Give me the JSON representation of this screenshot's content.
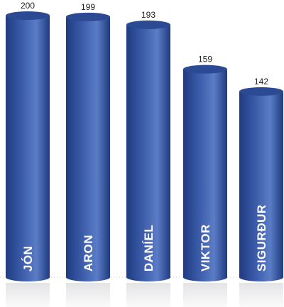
{
  "chart_data": {
    "type": "bar",
    "categories": [
      "JÓN",
      "ARON",
      "DANÍEL",
      "VIKTOR",
      "SIGURÐUR"
    ],
    "values": [
      200,
      199,
      193,
      159,
      142
    ],
    "ylim": [
      0,
      200
    ],
    "grid": false,
    "colors": {
      "bar_main": "#3a5aa8",
      "bar_light": "#5b7cc6",
      "bar_dark": "#1f3b80",
      "top_cap": "#2c4a94",
      "reflection": "#e4e4e6",
      "baseline": "#c8c8c8"
    }
  }
}
